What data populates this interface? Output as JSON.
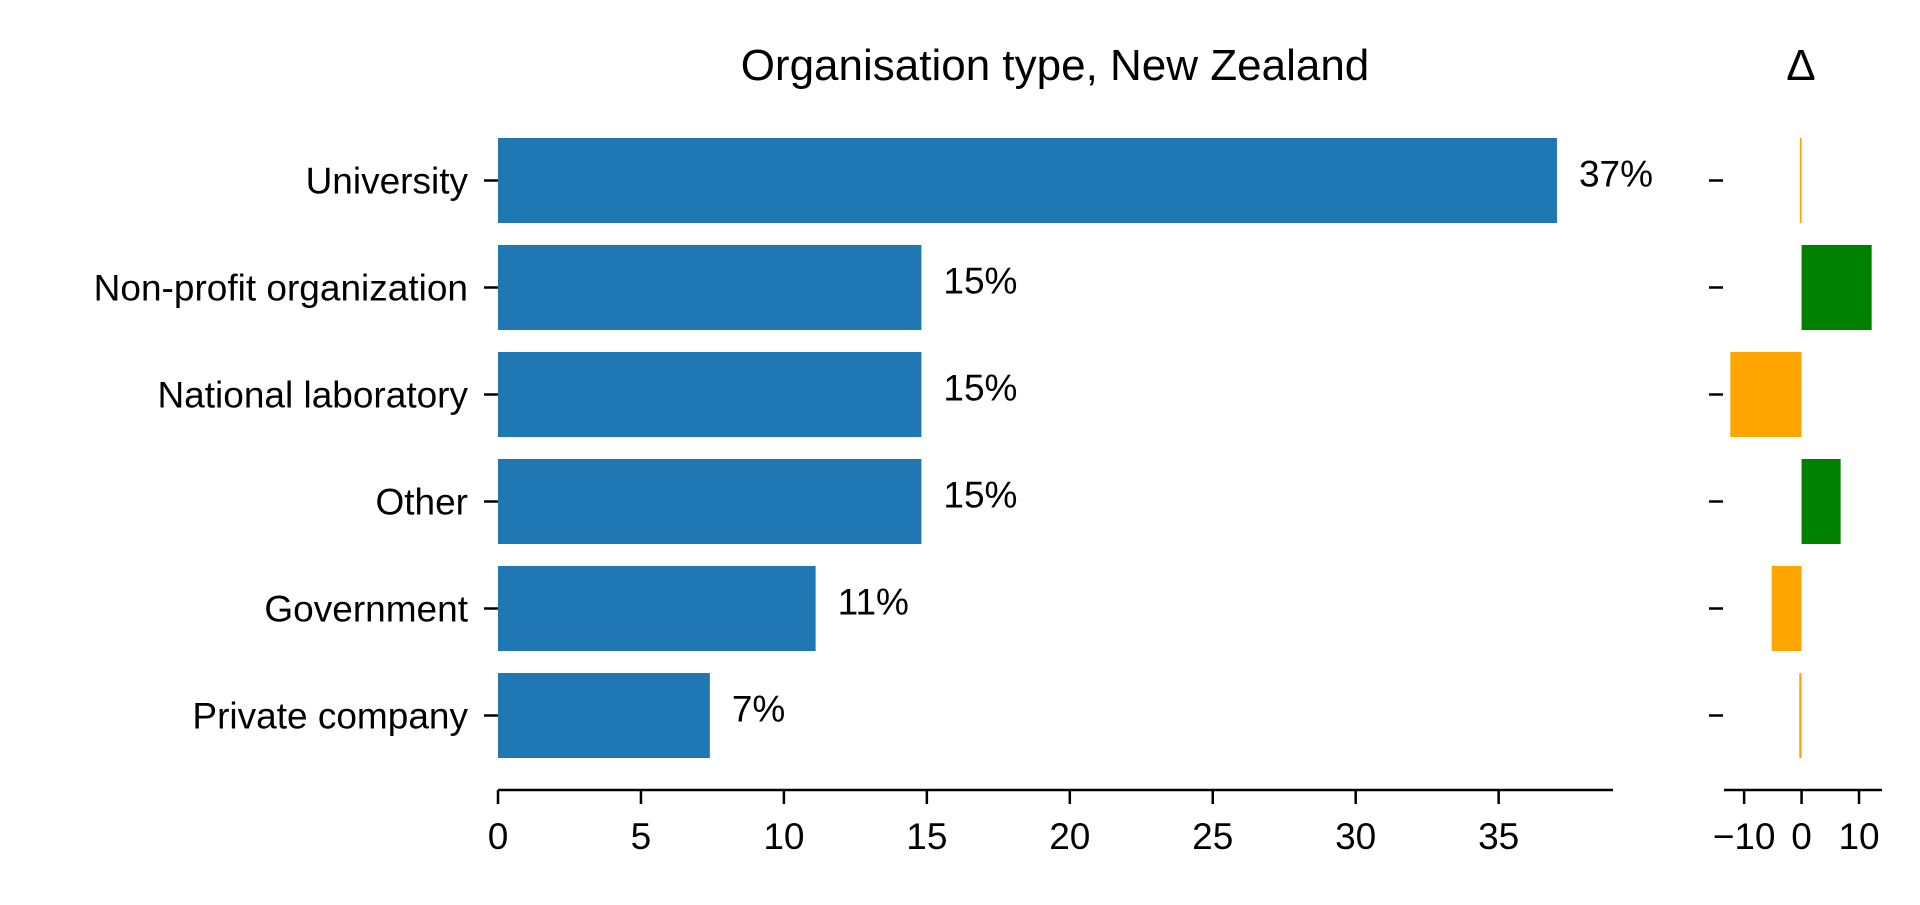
{
  "chart_data": [
    {
      "type": "bar",
      "orientation": "horizontal",
      "title": "Organisation type, New Zealand",
      "categories": [
        "University",
        "Non-profit organization",
        "National laboratory",
        "Other",
        "Government",
        "Private company"
      ],
      "values": [
        37.04,
        14.81,
        14.81,
        14.81,
        11.11,
        7.41
      ],
      "value_labels": [
        "37%",
        "15%",
        "15%",
        "15%",
        "11%",
        "7%"
      ],
      "xlim": [
        0,
        39
      ],
      "xticks": [
        0,
        5,
        10,
        15,
        20,
        25,
        30,
        35
      ],
      "bar_color": "#1f77b4",
      "grid": false
    },
    {
      "type": "bar",
      "orientation": "horizontal",
      "title": "Δ",
      "categories": [
        "University",
        "Non-profit organization",
        "National laboratory",
        "Other",
        "Government",
        "Private company"
      ],
      "values": [
        -0.3,
        12.2,
        -12.4,
        6.8,
        -5.2,
        -0.4
      ],
      "xlim": [
        -13.5,
        14
      ],
      "xticks": [
        -10,
        0,
        10
      ],
      "xtick_labels": [
        "−10",
        "0",
        "10"
      ],
      "positive_color": "#008000",
      "negative_color": "#ffa500",
      "grid": false
    }
  ]
}
